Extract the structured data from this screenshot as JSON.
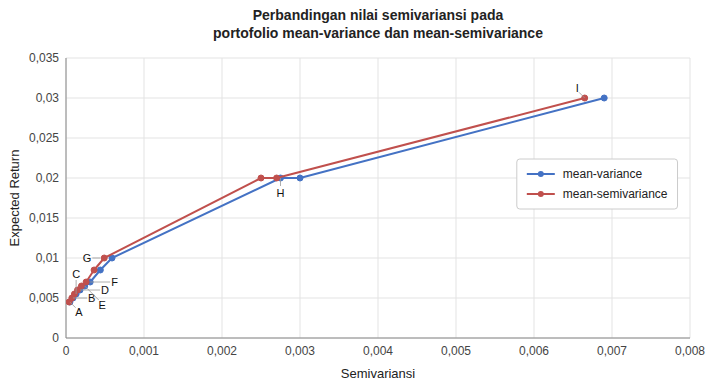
{
  "chart_data": {
    "type": "line",
    "title": "Perbandingan nilai semivariansi pada\nportofolio mean-variance dan mean-semivariance",
    "x_label": "Semivariansi",
    "y_label": "Expected Return",
    "xlim": [
      0,
      0.008
    ],
    "ylim": [
      0,
      0.035
    ],
    "xticks": [
      0,
      {
        "value": 0.001,
        "label": "0,001"
      },
      {
        "value": 0.002,
        "label": "0,002"
      },
      {
        "value": 0.003,
        "label": "0,003"
      },
      {
        "value": 0.004,
        "label": "0,004"
      },
      {
        "value": 0.005,
        "label": "0,005"
      },
      {
        "value": 0.006,
        "label": "0,006"
      },
      {
        "value": 0.007,
        "label": "0,007"
      },
      {
        "value": 0.008,
        "label": "0,008"
      }
    ],
    "yticks": [
      0,
      {
        "value": 0.005,
        "label": "0,005"
      },
      {
        "value": 0.01,
        "label": "0,01"
      },
      {
        "value": 0.015,
        "label": "0,015"
      },
      {
        "value": 0.02,
        "label": "0,02"
      },
      {
        "value": 0.025,
        "label": "0,025"
      },
      {
        "value": 0.03,
        "label": "0,03"
      },
      {
        "value": 0.035,
        "label": "0,035"
      }
    ],
    "grid": true,
    "legend": "right",
    "marker": "circle",
    "line_style": "solid",
    "series": [
      {
        "name": "mean-variance",
        "color": "#4472C4",
        "x": [
          5e-05,
          9e-05,
          0.00013,
          0.00018,
          0.00024,
          0.00031,
          0.00044,
          0.00059,
          0.00275,
          0.003,
          0.0069
        ],
        "values": [
          0.0045,
          0.005,
          0.0055,
          0.006,
          0.0065,
          0.007,
          0.0085,
          0.01,
          0.02,
          0.02,
          0.03
        ]
      },
      {
        "name": "mean-semivariance",
        "color": "#C0504D",
        "x": [
          4e-05,
          7.5e-05,
          0.000108,
          0.000148,
          0.000198,
          0.000258,
          0.00036,
          0.00049,
          0.0025,
          0.0027,
          0.00665
        ],
        "values": [
          0.0045,
          0.005,
          0.0055,
          0.006,
          0.0065,
          0.007,
          0.0085,
          0.01,
          0.02,
          0.02,
          0.03
        ]
      }
    ],
    "annotations": [
      {
        "text": "A",
        "x": 5e-05,
        "y": 0.0045
      },
      {
        "text": "B",
        "x": 9e-05,
        "y": 0.005
      },
      {
        "text": "C",
        "x": 0.00013,
        "y": 0.0055
      },
      {
        "text": "D",
        "x": 0.00018,
        "y": 0.006
      },
      {
        "text": "E",
        "x": 0.00024,
        "y": 0.0065
      },
      {
        "text": "F",
        "x": 0.00031,
        "y": 0.007
      },
      {
        "text": "G",
        "x": 0.00044,
        "y": 0.01
      },
      {
        "text": "H",
        "x": 0.00275,
        "y": 0.02
      },
      {
        "text": "I",
        "x": 0.00665,
        "y": 0.03
      }
    ]
  }
}
